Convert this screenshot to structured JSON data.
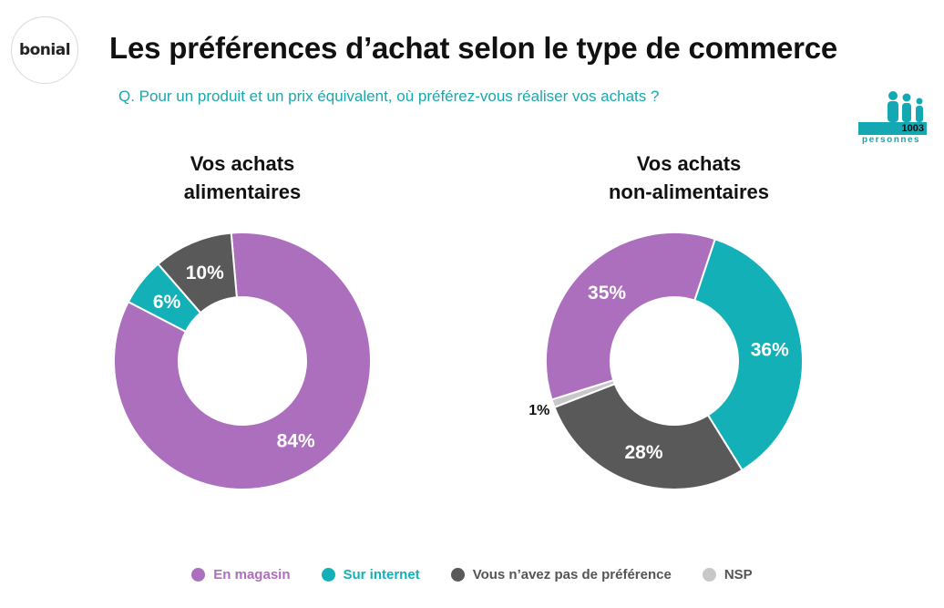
{
  "logo_text": "bonial",
  "title": "Les préférences d’achat selon le type de commerce",
  "question": "Q. Pour un produit et un prix équivalent, où préférez-vous réaliser vos achats ?",
  "sample": {
    "count": "1003",
    "label": "personnes",
    "icon": "people-icon"
  },
  "colors": {
    "En magasin": "#ac6fbd",
    "Sur internet": "#14b0b7",
    "Vous n’avez pas de préférence": "#595959",
    "NSP": "#c8c8c8"
  },
  "legend": [
    {
      "label": "En magasin",
      "color": "#ac6fbd"
    },
    {
      "label": "Sur internet",
      "color": "#14b0b7"
    },
    {
      "label": "Vous n’avez pas de préférence",
      "color": "#595959"
    },
    {
      "label": "NSP",
      "color": "#c8c8c8"
    }
  ],
  "chart_data": [
    {
      "type": "pie",
      "donut": true,
      "title": "Vos achats\nalimentaires",
      "title_lines": [
        "Vos achats",
        "alimentaires"
      ],
      "slices": [
        {
          "label": "En magasin",
          "value": 84,
          "text": "84%"
        },
        {
          "label": "Sur internet",
          "value": 6,
          "text": "6%"
        },
        {
          "label": "Vous n’avez pas de préférence",
          "value": 10,
          "text": "10%"
        }
      ]
    },
    {
      "type": "pie",
      "donut": true,
      "title": "Vos achats\nnon-alimentaires",
      "title_lines": [
        "Vos achats",
        "non-alimentaires"
      ],
      "slices": [
        {
          "label": "Sur internet",
          "value": 36,
          "text": "36%"
        },
        {
          "label": "Vous n’avez pas de préférence",
          "value": 28,
          "text": "28%"
        },
        {
          "label": "NSP",
          "value": 1,
          "text": "1%"
        },
        {
          "label": "En magasin",
          "value": 35,
          "text": "35%"
        }
      ]
    }
  ]
}
